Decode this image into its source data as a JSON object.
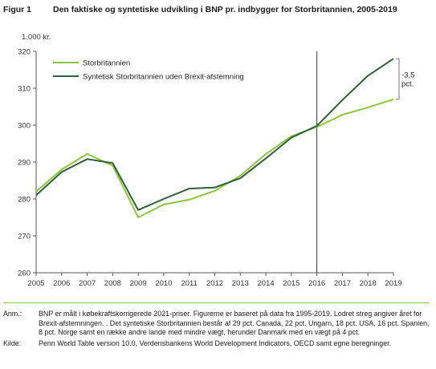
{
  "figure": {
    "number": "Figur 1",
    "title": "Den faktiske og syntetiske udvikling i BNP pr. indbygger for Storbritannien, 2005-2019"
  },
  "chart_data": {
    "type": "line",
    "unit_label": "1.000 kr.",
    "x": [
      2005,
      2006,
      2007,
      2008,
      2009,
      2010,
      2011,
      2012,
      2013,
      2014,
      2015,
      2016,
      2017,
      2018,
      2019
    ],
    "series": [
      {
        "name": "Storbritannien",
        "color": "#8cc63e",
        "values": [
          282.0,
          288.0,
          292.2,
          289.0,
          275.0,
          278.5,
          279.8,
          282.2,
          286.3,
          292.2,
          297.0,
          299.5,
          302.8,
          304.8,
          307.0
        ]
      },
      {
        "name": "Syntetisk Storbritannien uden Brexit-afstemning",
        "color": "#2f5e3a",
        "values": [
          281.0,
          287.3,
          290.8,
          289.7,
          277.0,
          280.0,
          282.8,
          283.1,
          285.6,
          291.0,
          296.6,
          299.8,
          306.8,
          313.4,
          318.0
        ]
      }
    ],
    "ylim": [
      260,
      320
    ],
    "yticks": [
      260,
      270,
      280,
      290,
      300,
      310,
      320
    ],
    "xlim": [
      2005,
      2019
    ],
    "vertical_line_x": 2016,
    "legend_position": "top-left",
    "grid": false,
    "annotation": {
      "x": 2019,
      "from_value": 318.0,
      "to_value": 307.0,
      "lines": [
        "-3,5",
        "pct."
      ]
    }
  },
  "notes": {
    "anm_label": "Anm.:",
    "anm_text": "BNP er målt i købekraftskorrigerede 2021-priser. Figurerne er baseret på data fra 1995-2019. Lodret streg angiver året for Brexit-afstemningen. . Det syntetiske Storbritannien består af 29 pct. Canada, 22 pct. Ungarn, 18 pct. USA, 16 pct. Spanien, 8 pct. Norge samt en række andre lande med mindre vægt, herunder Danmark med en vægt på 4 pct.",
    "kilde_label": "Kilde:",
    "kilde_text": "Penn World Table version 10.0, Verdensbankens World Development Indicators, OECD samt egne beregninger."
  }
}
